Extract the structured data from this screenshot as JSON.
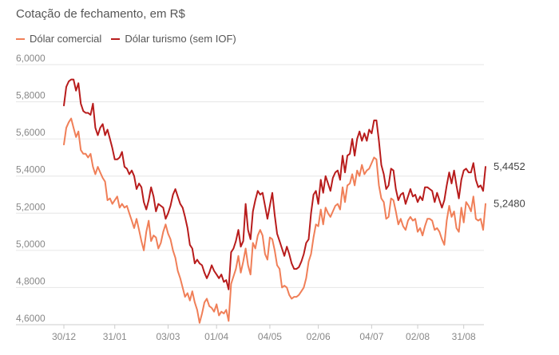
{
  "chart_data": {
    "type": "line",
    "title": "Cotação de fechamento, em R$",
    "ylim": [
      4.6,
      6.0
    ],
    "y_ticks": [
      "6,0000",
      "5,8000",
      "5,6000",
      "5,4000",
      "5,2000",
      "5,0000",
      "4,8000",
      "4,6000"
    ],
    "y_tick_values": [
      6.0,
      5.8,
      5.6,
      5.4,
      5.2,
      5.0,
      4.8,
      4.6
    ],
    "x_ticks": [
      "30/12",
      "31/01",
      "03/03",
      "01/04",
      "04/05",
      "02/06",
      "04/07",
      "02/08",
      "31/08"
    ],
    "grid": "horizontal",
    "legend_position": "top-left",
    "colors": {
      "comercial": "#f07f58",
      "turismo": "#b81c1c",
      "grid": "#e6e6e6",
      "axis": "#cccccc"
    },
    "series": [
      {
        "name": "Dólar comercial",
        "end_label": "5,2480",
        "values": [
          5.57,
          5.66,
          5.69,
          5.71,
          5.66,
          5.61,
          5.64,
          5.54,
          5.52,
          5.52,
          5.5,
          5.52,
          5.45,
          5.41,
          5.45,
          5.42,
          5.39,
          5.37,
          5.27,
          5.28,
          5.25,
          5.27,
          5.29,
          5.23,
          5.25,
          5.23,
          5.24,
          5.2,
          5.16,
          5.12,
          5.17,
          5.11,
          5.05,
          5.0,
          5.1,
          5.16,
          5.05,
          5.08,
          5.07,
          5.01,
          5.04,
          5.1,
          5.14,
          5.09,
          5.06,
          5.0,
          4.96,
          4.89,
          4.85,
          4.8,
          4.75,
          4.77,
          4.73,
          4.78,
          4.72,
          4.68,
          4.61,
          4.66,
          4.72,
          4.74,
          4.7,
          4.69,
          4.67,
          4.71,
          4.65,
          4.67,
          4.66,
          4.68,
          4.62,
          4.82,
          4.86,
          4.9,
          4.97,
          4.88,
          4.94,
          5.01,
          4.92,
          4.87,
          5.04,
          5.01,
          5.08,
          5.11,
          5.08,
          4.98,
          4.95,
          5.07,
          5.06,
          5.0,
          4.92,
          4.9,
          4.8,
          4.81,
          4.8,
          4.76,
          4.74,
          4.75,
          4.75,
          4.76,
          4.78,
          4.8,
          4.85,
          4.94,
          4.98,
          5.07,
          5.14,
          5.13,
          5.22,
          5.14,
          5.23,
          5.2,
          5.18,
          5.21,
          5.24,
          5.25,
          5.22,
          5.34,
          5.26,
          5.35,
          5.36,
          5.41,
          5.35,
          5.43,
          5.4,
          5.46,
          5.41,
          5.43,
          5.44,
          5.47,
          5.5,
          5.49,
          5.35,
          5.28,
          5.26,
          5.17,
          5.18,
          5.28,
          5.27,
          5.21,
          5.14,
          5.17,
          5.13,
          5.11,
          5.16,
          5.18,
          5.16,
          5.17,
          5.1,
          5.12,
          5.08,
          5.13,
          5.17,
          5.17,
          5.16,
          5.11,
          5.12,
          5.1,
          5.06,
          5.03,
          5.16,
          5.24,
          5.18,
          5.21,
          5.12,
          5.1,
          5.23,
          5.15,
          5.26,
          5.24,
          5.21,
          5.29,
          5.17,
          5.16,
          5.17,
          5.11,
          5.25
        ]
      },
      {
        "name": "Dólar turismo (sem IOF)",
        "end_label": "5,4452",
        "values": [
          5.78,
          5.88,
          5.91,
          5.92,
          5.92,
          5.86,
          5.9,
          5.79,
          5.75,
          5.74,
          5.74,
          5.73,
          5.79,
          5.66,
          5.62,
          5.66,
          5.68,
          5.62,
          5.65,
          5.6,
          5.55,
          5.49,
          5.49,
          5.5,
          5.53,
          5.45,
          5.44,
          5.41,
          5.43,
          5.4,
          5.33,
          5.36,
          5.34,
          5.26,
          5.22,
          5.27,
          5.34,
          5.29,
          5.21,
          5.25,
          5.24,
          5.23,
          5.17,
          5.2,
          5.24,
          5.3,
          5.33,
          5.29,
          5.25,
          5.23,
          5.18,
          5.12,
          5.03,
          5.01,
          4.93,
          4.95,
          4.93,
          4.92,
          4.88,
          4.85,
          4.88,
          4.92,
          4.89,
          4.87,
          4.85,
          4.87,
          4.83,
          4.84,
          4.79,
          4.99,
          5.01,
          5.05,
          5.11,
          5.02,
          5.05,
          5.25,
          5.11,
          5.06,
          5.21,
          5.27,
          5.32,
          5.3,
          5.31,
          5.24,
          5.17,
          5.24,
          5.31,
          5.19,
          5.09,
          5.05,
          5.01,
          4.97,
          5.02,
          4.98,
          4.93,
          4.9,
          4.9,
          4.91,
          4.94,
          4.98,
          5.04,
          5.06,
          5.2,
          5.3,
          5.32,
          5.25,
          5.38,
          5.31,
          5.4,
          5.36,
          5.32,
          5.39,
          5.42,
          5.43,
          5.38,
          5.51,
          5.42,
          5.51,
          5.52,
          5.6,
          5.51,
          5.6,
          5.64,
          5.59,
          5.63,
          5.59,
          5.65,
          5.63,
          5.7,
          5.7,
          5.59,
          5.46,
          5.41,
          5.33,
          5.35,
          5.44,
          5.43,
          5.33,
          5.27,
          5.3,
          5.31,
          5.25,
          5.29,
          5.33,
          5.29,
          5.3,
          5.26,
          5.29,
          5.27,
          5.34,
          5.34,
          5.33,
          5.32,
          5.26,
          5.31,
          5.27,
          5.23,
          5.27,
          5.35,
          5.42,
          5.36,
          5.43,
          5.35,
          5.28,
          5.38,
          5.43,
          5.44,
          5.42,
          5.42,
          5.47,
          5.38,
          5.34,
          5.35,
          5.32,
          5.45
        ]
      }
    ]
  }
}
